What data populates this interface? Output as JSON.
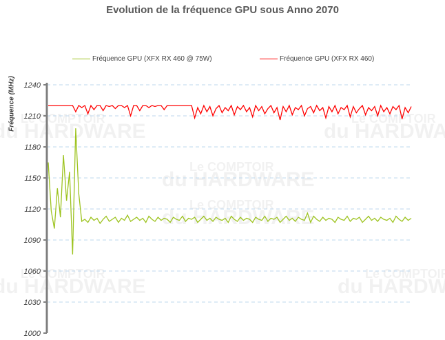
{
  "chart_data": {
    "type": "line",
    "title": "Evolution de la fréquence GPU sous Anno 2070",
    "xlabel": "",
    "ylabel": "Fréquence (MHz)",
    "ylim": [
      1000,
      1240
    ],
    "yticks": [
      1000,
      1030,
      1060,
      1090,
      1120,
      1150,
      1180,
      1210,
      1240
    ],
    "grid": true,
    "legend_position": "top",
    "series": [
      {
        "name": "Fréquence GPU (XFX RX 460 @ 75W)",
        "color": "#9dc31f",
        "values": [
          1165,
          1118,
          1101,
          1140,
          1112,
          1172,
          1128,
          1156,
          1076,
          1198,
          1135,
          1108,
          1110,
          1107,
          1112,
          1109,
          1111,
          1106,
          1110,
          1113,
          1108,
          1110,
          1112,
          1107,
          1111,
          1109,
          1114,
          1108,
          1110,
          1112,
          1109,
          1111,
          1107,
          1113,
          1110,
          1108,
          1112,
          1109,
          1111,
          1110,
          1107,
          1112,
          1110,
          1109,
          1113,
          1108,
          1111,
          1110,
          1112,
          1107,
          1110,
          1113,
          1109,
          1111,
          1108,
          1112,
          1110,
          1109,
          1111,
          1107,
          1113,
          1110,
          1108,
          1112,
          1109,
          1111,
          1110,
          1107,
          1112,
          1110,
          1109,
          1113,
          1108,
          1111,
          1110,
          1112,
          1107,
          1110,
          1113,
          1109,
          1111,
          1108,
          1112,
          1110,
          1109,
          1116,
          1107,
          1113,
          1110,
          1108,
          1112,
          1109,
          1111,
          1110,
          1107,
          1112,
          1110,
          1109,
          1113,
          1108,
          1111,
          1110,
          1112,
          1107,
          1110,
          1113,
          1109,
          1111,
          1108,
          1112,
          1110,
          1109,
          1111,
          1107,
          1113,
          1110,
          1108,
          1112,
          1109,
          1111
        ]
      },
      {
        "name": "Fréquence GPU (XFX RX 460)",
        "color": "#ff0000",
        "values": [
          1220,
          1220,
          1220,
          1220,
          1220,
          1220,
          1220,
          1220,
          1220,
          1214,
          1220,
          1218,
          1220,
          1212,
          1220,
          1216,
          1220,
          1220,
          1215,
          1220,
          1219,
          1220,
          1217,
          1220,
          1220,
          1218,
          1220,
          1210,
          1220,
          1220,
          1215,
          1220,
          1220,
          1218,
          1220,
          1219,
          1220,
          1220,
          1216,
          1220,
          1220,
          1220,
          1220,
          1220,
          1220,
          1220,
          1220,
          1220,
          1208,
          1218,
          1212,
          1220,
          1214,
          1219,
          1210,
          1217,
          1220,
          1213,
          1218,
          1215,
          1220,
          1211,
          1219,
          1216,
          1220,
          1214,
          1218,
          1209,
          1220,
          1215,
          1219,
          1212,
          1217,
          1220,
          1213,
          1218,
          1206,
          1219,
          1214,
          1220,
          1211,
          1218,
          1216,
          1220,
          1210,
          1217,
          1219,
          1213,
          1220,
          1215,
          1218,
          1208,
          1219,
          1214,
          1220,
          1212,
          1218,
          1216,
          1220,
          1209,
          1219,
          1213,
          1217,
          1220,
          1211,
          1218,
          1215,
          1219,
          1210,
          1220,
          1214,
          1218,
          1212,
          1219,
          1216,
          1220,
          1207,
          1218,
          1213,
          1219
        ]
      }
    ]
  },
  "watermark": {
    "line1": "Le COMPTOIR",
    "line2": "du HARDWARE"
  }
}
